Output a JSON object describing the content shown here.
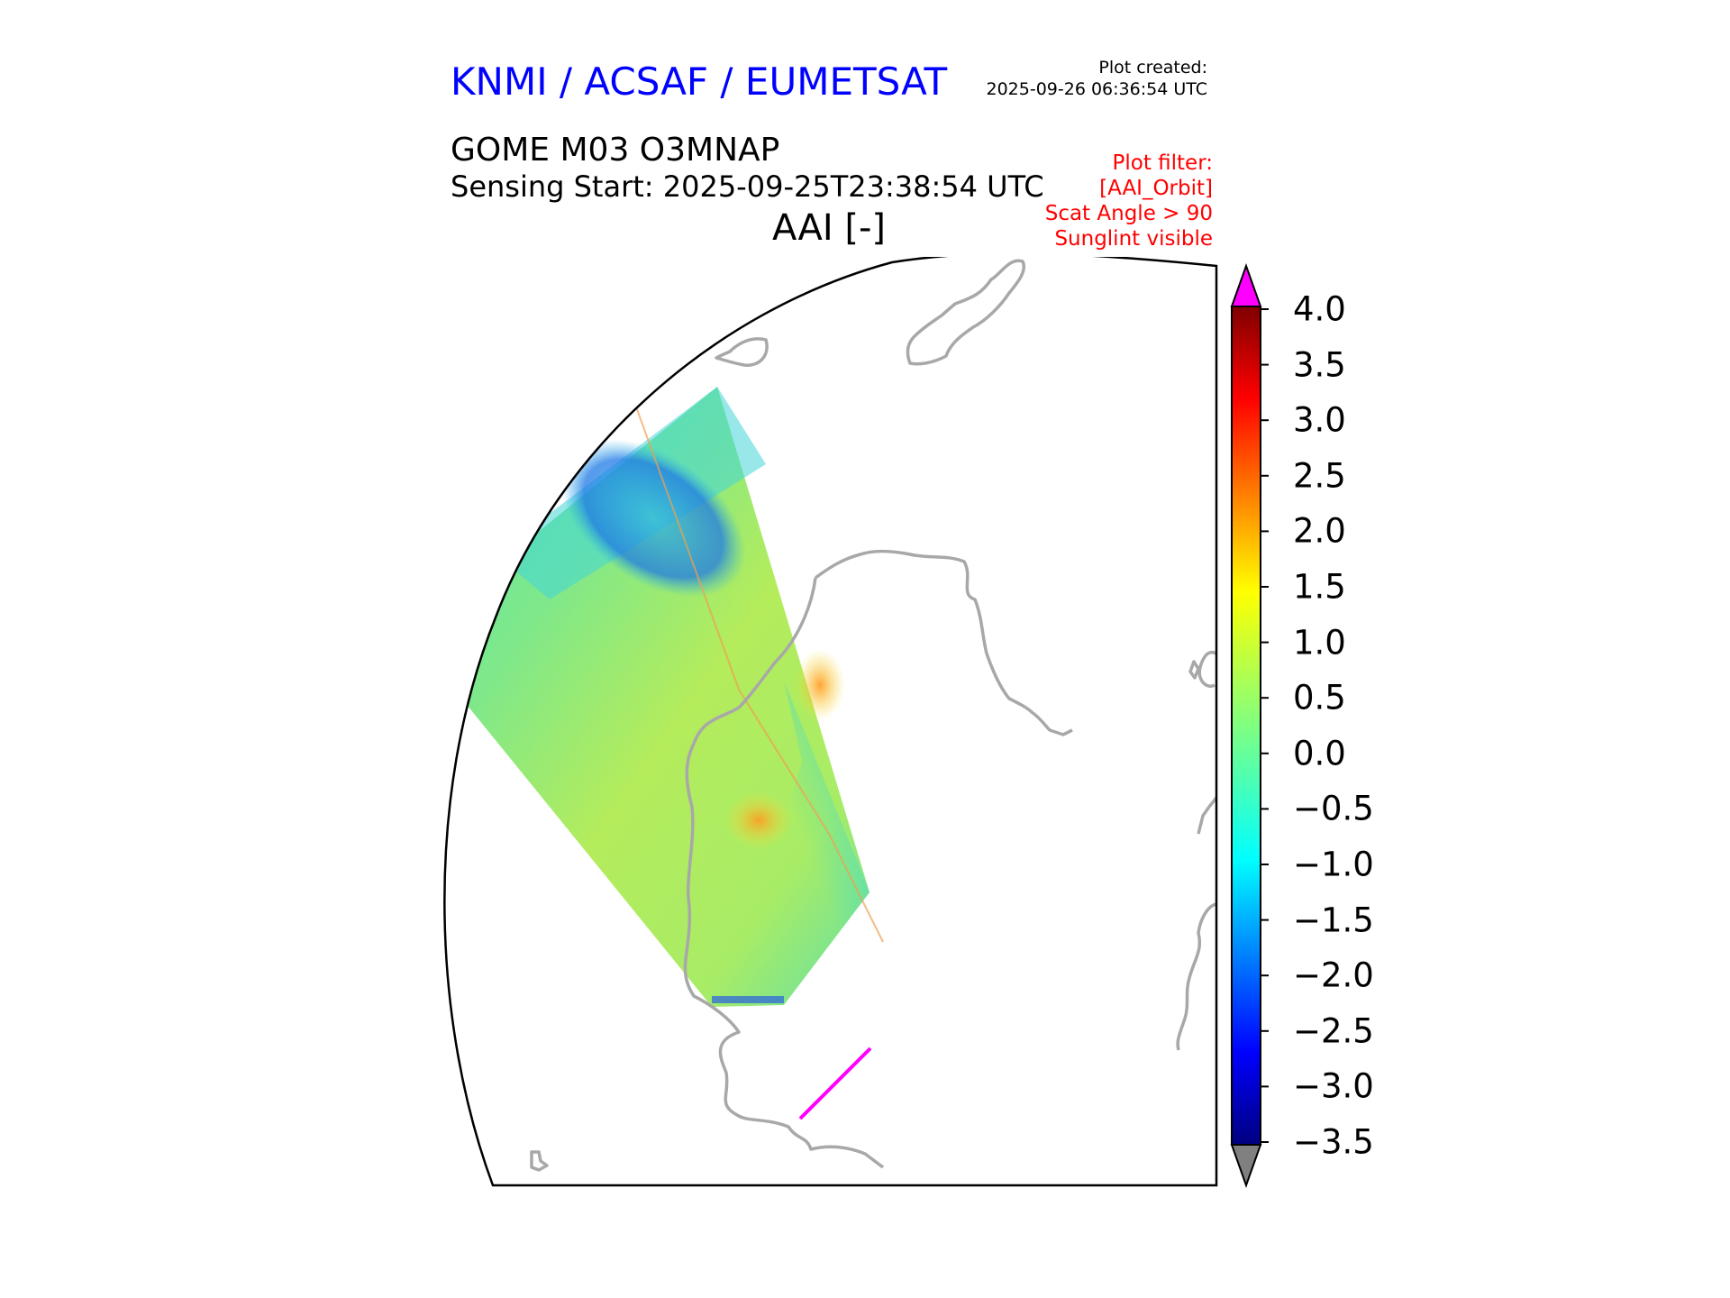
{
  "header": {
    "organization": "KNMI / ACSAF / EUMETSAT",
    "plot_created_label": "Plot created:",
    "plot_created_time": "2025-09-26 06:36:54 UTC",
    "product": "GOME M03 O3MNAP",
    "sensing_start": "Sensing Start: 2025-09-25T23:38:54 UTC",
    "variable": "AAI [-]"
  },
  "plot_filter": {
    "lines": [
      "Plot filter:",
      "[AAI_Orbit]",
      "Scat Angle > 90",
      "Sunglint visible"
    ]
  },
  "colorbar": {
    "min": -3.5,
    "max": 4.0,
    "tick_labels": [
      "4.0",
      "3.5",
      "3.0",
      "2.5",
      "2.0",
      "1.5",
      "1.0",
      "0.5",
      "0.0",
      "−0.5",
      "−1.0",
      "−1.5",
      "−2.0",
      "−2.5",
      "−3.0",
      "−3.5"
    ],
    "colormap": "jet",
    "over_color": "#ff00ff",
    "under_color": "#808080"
  },
  "map": {
    "coastline_color": "#a8a8a8",
    "frame_color": "#000000",
    "background": "#ffffff",
    "swath_dominant_value_range": [
      -1.0,
      1.5
    ],
    "highlight_track_color": "#ff00ff"
  }
}
